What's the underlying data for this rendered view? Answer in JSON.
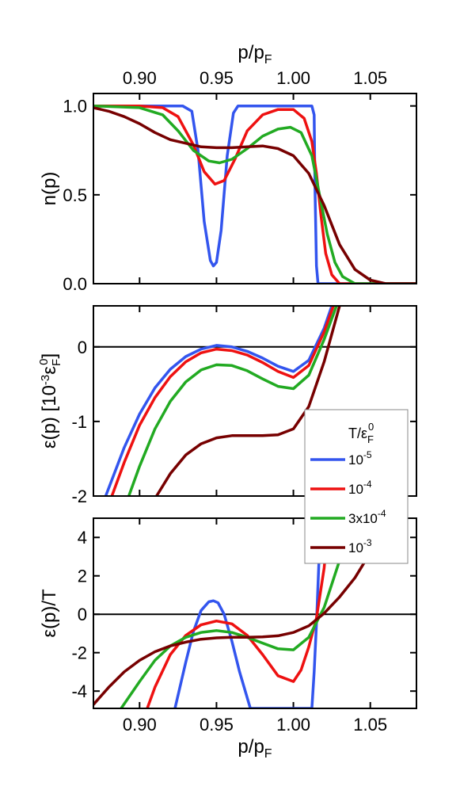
{
  "chart_data": [
    {
      "type": "line",
      "panel": "top",
      "xlabel": "p/p_F",
      "ylabel": "n(p)",
      "xlim": [
        0.87,
        1.08
      ],
      "ylim": [
        0.0,
        1.07
      ],
      "x_ticks": [
        "0.90",
        "0.95",
        "1.00",
        "1.05"
      ],
      "x_tick_values": [
        0.9,
        0.95,
        1.0,
        1.05
      ],
      "y_ticks": [
        "0.0",
        "0.5",
        "1.0"
      ],
      "y_tick_values": [
        0.0,
        0.5,
        1.0
      ],
      "x_tick_labels_position": "top",
      "series": [
        {
          "name": "10^-5",
          "color": "#3355ee",
          "x": [
            0.87,
            0.928,
            0.934,
            0.938,
            0.942,
            0.946,
            0.948,
            0.95,
            0.953,
            0.957,
            0.961,
            0.964,
            0.968,
            1.012,
            1.0135,
            1.014,
            1.015,
            1.016,
            1.08
          ],
          "y": [
            1.0,
            1.0,
            0.97,
            0.75,
            0.35,
            0.13,
            0.1,
            0.12,
            0.3,
            0.72,
            0.96,
            1.0,
            1.0,
            1.0,
            0.95,
            0.55,
            0.1,
            0.0,
            0.0
          ]
        },
        {
          "name": "10^-4",
          "color": "#ee1111",
          "x": [
            0.87,
            0.9,
            0.915,
            0.925,
            0.935,
            0.942,
            0.949,
            0.955,
            0.962,
            0.97,
            0.98,
            0.99,
            1.0,
            1.007,
            1.012,
            1.015,
            1.018,
            1.021,
            1.025,
            1.03,
            1.08
          ],
          "y": [
            1.0,
            1.0,
            0.99,
            0.94,
            0.78,
            0.63,
            0.56,
            0.58,
            0.7,
            0.86,
            0.95,
            0.98,
            0.98,
            0.93,
            0.8,
            0.62,
            0.38,
            0.17,
            0.05,
            0.0,
            0.0
          ]
        },
        {
          "name": "3x10^-4",
          "color": "#22aa22",
          "x": [
            0.87,
            0.9,
            0.915,
            0.925,
            0.935,
            0.945,
            0.952,
            0.96,
            0.97,
            0.98,
            0.99,
            0.998,
            1.005,
            1.012,
            1.017,
            1.022,
            1.027,
            1.032,
            1.04,
            1.08
          ],
          "y": [
            1.0,
            0.99,
            0.95,
            0.86,
            0.75,
            0.69,
            0.68,
            0.7,
            0.76,
            0.83,
            0.87,
            0.88,
            0.85,
            0.72,
            0.5,
            0.28,
            0.12,
            0.04,
            0.0,
            0.0
          ]
        },
        {
          "name": "10^-3",
          "color": "#770000",
          "x": [
            0.87,
            0.88,
            0.89,
            0.9,
            0.91,
            0.92,
            0.93,
            0.94,
            0.95,
            0.96,
            0.97,
            0.98,
            0.99,
            1.0,
            1.01,
            1.02,
            1.03,
            1.04,
            1.05,
            1.06,
            1.08
          ],
          "y": [
            0.99,
            0.97,
            0.94,
            0.9,
            0.85,
            0.81,
            0.79,
            0.77,
            0.765,
            0.765,
            0.77,
            0.775,
            0.76,
            0.72,
            0.62,
            0.44,
            0.22,
            0.08,
            0.02,
            0.0,
            0.0
          ]
        }
      ]
    },
    {
      "type": "line",
      "panel": "middle",
      "xlabel": "",
      "ylabel": "ε(p) [10^-3 ε_F^0]",
      "xlim": [
        0.87,
        1.08
      ],
      "ylim": [
        -2.0,
        0.55
      ],
      "x_ticks": [],
      "x_tick_values": [
        0.9,
        0.95,
        1.0,
        1.05
      ],
      "y_ticks": [
        "0",
        "-1",
        "-2"
      ],
      "y_tick_values": [
        0,
        -1,
        -2
      ],
      "zero_line": true,
      "legend": {
        "title": "T/ε_F^0",
        "placement": "right",
        "entries": [
          "10^-5",
          "10^-4",
          "3x10^-4",
          "10^-3"
        ]
      },
      "series": [
        {
          "name": "10^-5",
          "color": "#3355ee",
          "x": [
            0.878,
            0.89,
            0.9,
            0.91,
            0.92,
            0.93,
            0.94,
            0.95,
            0.96,
            0.97,
            0.98,
            0.99,
            1.0,
            1.01,
            1.02,
            1.025
          ],
          "y": [
            -2.0,
            -1.35,
            -0.9,
            -0.55,
            -0.3,
            -0.13,
            -0.03,
            0.02,
            0.0,
            -0.06,
            -0.15,
            -0.26,
            -0.33,
            -0.18,
            0.25,
            0.55
          ]
        },
        {
          "name": "10^-4",
          "color": "#ee1111",
          "x": [
            0.882,
            0.89,
            0.9,
            0.91,
            0.92,
            0.93,
            0.94,
            0.95,
            0.96,
            0.97,
            0.98,
            0.99,
            1.0,
            1.01,
            1.02,
            1.026
          ],
          "y": [
            -2.0,
            -1.55,
            -1.05,
            -0.68,
            -0.4,
            -0.2,
            -0.08,
            -0.03,
            -0.05,
            -0.11,
            -0.21,
            -0.33,
            -0.41,
            -0.25,
            0.2,
            0.55
          ]
        },
        {
          "name": "3x10^-4",
          "color": "#22aa22",
          "x": [
            0.893,
            0.9,
            0.91,
            0.92,
            0.93,
            0.94,
            0.95,
            0.96,
            0.97,
            0.98,
            0.99,
            1.0,
            1.01,
            1.02,
            1.028
          ],
          "y": [
            -2.0,
            -1.6,
            -1.1,
            -0.73,
            -0.47,
            -0.31,
            -0.24,
            -0.25,
            -0.32,
            -0.43,
            -0.53,
            -0.56,
            -0.38,
            0.1,
            0.55
          ]
        },
        {
          "name": "10^-3",
          "color": "#770000",
          "x": [
            0.911,
            0.92,
            0.93,
            0.94,
            0.95,
            0.96,
            0.97,
            0.98,
            0.99,
            1.0,
            1.01,
            1.02,
            1.03
          ],
          "y": [
            -2.0,
            -1.7,
            -1.45,
            -1.3,
            -1.22,
            -1.19,
            -1.19,
            -1.19,
            -1.18,
            -1.1,
            -0.8,
            -0.2,
            0.55
          ]
        }
      ]
    },
    {
      "type": "line",
      "panel": "bottom",
      "xlabel": "p/p_F",
      "ylabel": "ε(p)/T",
      "xlim": [
        0.87,
        1.08
      ],
      "ylim": [
        -4.9,
        5.0
      ],
      "x_ticks": [
        "0.90",
        "0.95",
        "1.00",
        "1.05"
      ],
      "x_tick_values": [
        0.9,
        0.95,
        1.0,
        1.05
      ],
      "y_ticks": [
        "4",
        "2",
        "0",
        "-2",
        "-4"
      ],
      "y_tick_values": [
        4,
        2,
        0,
        -2,
        -4
      ],
      "zero_line": true,
      "series": [
        {
          "name": "10^-5",
          "color": "#3355ee",
          "x": [
            0.923,
            0.93,
            0.935,
            0.94,
            0.945,
            0.948,
            0.951,
            0.955,
            0.96,
            0.965,
            0.972,
            1.012,
            1.0135,
            1.015,
            1.0165,
            1.018
          ],
          "y": [
            -4.9,
            -2.5,
            -0.9,
            0.2,
            0.65,
            0.7,
            0.6,
            0.0,
            -1.4,
            -3.0,
            -4.9,
            -4.9,
            -3.0,
            -0.5,
            2.5,
            5.0
          ]
        },
        {
          "name": "10^-4",
          "color": "#ee1111",
          "x": [
            0.905,
            0.91,
            0.92,
            0.93,
            0.94,
            0.95,
            0.96,
            0.97,
            0.98,
            0.99,
            1.0,
            1.005,
            1.01,
            1.015,
            1.02,
            1.023
          ],
          "y": [
            -4.9,
            -3.8,
            -2.1,
            -1.1,
            -0.55,
            -0.35,
            -0.5,
            -1.1,
            -2.1,
            -3.2,
            -3.5,
            -2.9,
            -1.7,
            -0.2,
            2.4,
            5.0
          ]
        },
        {
          "name": "3x10^-4",
          "color": "#22aa22",
          "x": [
            0.888,
            0.9,
            0.91,
            0.92,
            0.93,
            0.94,
            0.95,
            0.96,
            0.97,
            0.98,
            0.99,
            1.0,
            1.01,
            1.02,
            1.03,
            1.036
          ],
          "y": [
            -4.9,
            -3.5,
            -2.4,
            -1.65,
            -1.2,
            -0.95,
            -0.85,
            -0.95,
            -1.2,
            -1.5,
            -1.8,
            -1.85,
            -1.2,
            0.35,
            2.8,
            5.0
          ]
        },
        {
          "name": "10^-3",
          "color": "#770000",
          "x": [
            0.87,
            0.88,
            0.89,
            0.9,
            0.91,
            0.92,
            0.93,
            0.94,
            0.95,
            0.96,
            0.97,
            0.98,
            0.99,
            1.0,
            1.01,
            1.02,
            1.03,
            1.04,
            1.05,
            1.055
          ],
          "y": [
            -4.7,
            -3.8,
            -3.0,
            -2.4,
            -1.95,
            -1.65,
            -1.45,
            -1.3,
            -1.23,
            -1.2,
            -1.2,
            -1.18,
            -1.12,
            -0.95,
            -0.6,
            0.05,
            0.9,
            1.9,
            3.2,
            4.0
          ]
        }
      ]
    }
  ],
  "legend_labels": {
    "title_base": "T/ε",
    "title_sub": "F",
    "title_sup": "0",
    "entries": [
      {
        "base": "10",
        "sup": "-5"
      },
      {
        "base": "10",
        "sup": "-4"
      },
      {
        "base": "3x10",
        "sup": "-4"
      },
      {
        "base": "10",
        "sup": "-3"
      }
    ]
  },
  "axis_titles": {
    "top_x_main": "p/p",
    "top_x_sub": "F",
    "bottom_x_main": "p/p",
    "bottom_x_sub": "F",
    "top_y": "n(p)",
    "mid_y_main": "ε(p) [10",
    "mid_y_sup": "-3",
    "mid_y_eps": "ε",
    "mid_y_sub": "F",
    "mid_y_sup2": "0",
    "mid_y_end": "]",
    "bottom_y": "ε(p)/T"
  }
}
